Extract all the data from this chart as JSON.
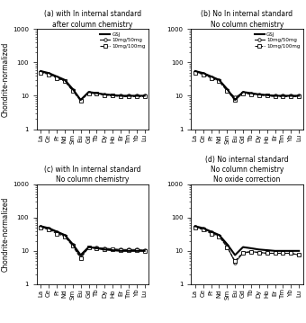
{
  "elements": [
    "La",
    "Ce",
    "Pr",
    "Nd",
    "Sm",
    "Eu",
    "Gd",
    "Tb",
    "Dy",
    "Ho",
    "Er",
    "Tm",
    "Yb",
    "Lu"
  ],
  "panels": [
    {
      "title": "(a) with In internal standard\nafter column chemistry",
      "gsj": [
        55,
        48,
        38,
        30,
        16,
        7.5,
        13,
        12,
        11,
        10.5,
        10,
        10,
        10,
        10
      ],
      "s1": [
        52,
        46,
        36,
        28,
        15,
        7.5,
        12.5,
        12,
        11,
        10.5,
        10,
        10,
        10,
        10
      ],
      "s2": [
        50,
        44,
        34,
        27,
        14,
        7.0,
        12.0,
        11.5,
        10.5,
        10,
        9.5,
        9.5,
        9.5,
        9.5
      ],
      "legend": true
    },
    {
      "title": "(b) No In internal standard\nNo column chemistry",
      "gsj": [
        55,
        48,
        38,
        30,
        16,
        7.5,
        13,
        12,
        11,
        10.5,
        10,
        10,
        10,
        10
      ],
      "s1": [
        52,
        46,
        36,
        29,
        15,
        9.0,
        12.5,
        11.5,
        11,
        10.5,
        10,
        10,
        10,
        10
      ],
      "s2": [
        50,
        44,
        34,
        27,
        14,
        7.5,
        12.0,
        11.0,
        10.5,
        10,
        9.5,
        9.5,
        9.5,
        9.5
      ],
      "legend": true
    },
    {
      "title": "(c) with In internal standard\nNo column chemistry",
      "gsj": [
        55,
        48,
        38,
        30,
        16,
        7.5,
        13,
        12,
        11,
        10.5,
        10,
        10,
        10,
        10
      ],
      "s1": [
        52,
        46,
        36,
        28,
        15,
        6.5,
        13,
        12.5,
        12,
        11.5,
        11,
        11,
        11,
        10.5
      ],
      "s2": [
        49,
        44,
        33,
        27,
        14,
        6.0,
        12.5,
        12.0,
        11.5,
        11,
        10.5,
        10.5,
        10.5,
        10
      ],
      "legend": false
    },
    {
      "title": "(d) No internal standard\nNo column chemistry\nNo oxide correction",
      "gsj": [
        55,
        48,
        38,
        30,
        16,
        7.5,
        13,
        12,
        11,
        10.5,
        10,
        10,
        10,
        10
      ],
      "s1": [
        52,
        46,
        36,
        28,
        14,
        4.5,
        8.5,
        9.5,
        9,
        8.5,
        8.5,
        8.5,
        8.5,
        7.5
      ],
      "s2": [
        49,
        44,
        33,
        27,
        13,
        5.0,
        9.0,
        9.5,
        9,
        8.5,
        8.5,
        8.5,
        8.5,
        7.5
      ],
      "legend": false
    }
  ],
  "ylabel": "Chondrite-normalized",
  "ylim": [
    1,
    1000
  ],
  "legend_labels": [
    "GSJ",
    "10mg/50mg",
    "10mg/100mg"
  ]
}
